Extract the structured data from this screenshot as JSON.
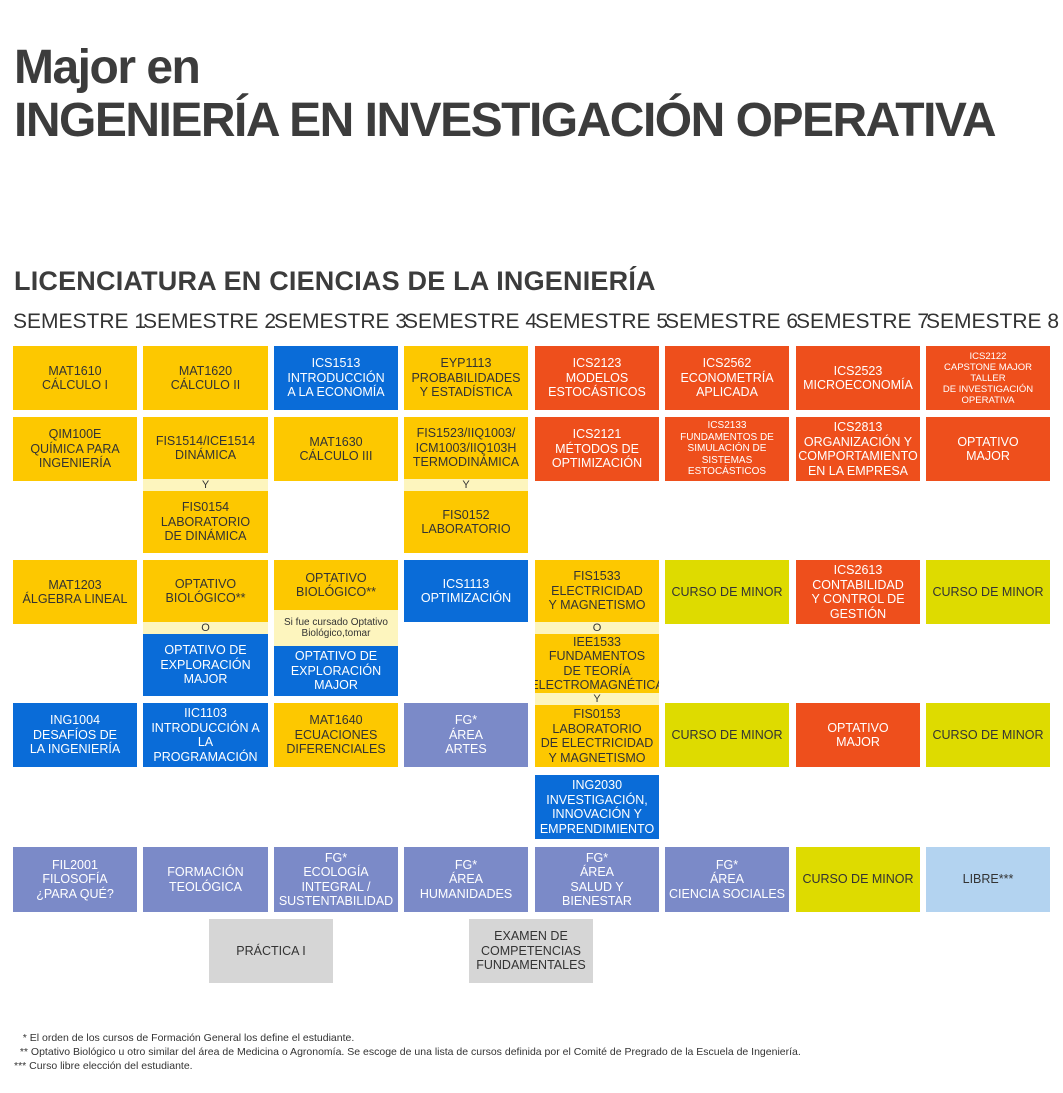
{
  "header": {
    "line1": "Major en",
    "line2": "INGENIERÍA EN INVESTIGACIÓN OPERATIVA",
    "subtitle": "LICENCIATURA EN CIENCIAS DE LA INGENIERÍA"
  },
  "semesters": [
    "SEMESTRE 1",
    "SEMESTRE 2",
    "SEMESTRE 3",
    "SEMESTRE 4",
    "SEMESTRE 5",
    "SEMESTRE 6",
    "SEMESTRE 7",
    "SEMESTRE 8"
  ],
  "colors": {
    "ciencias_basicas": "#fdc800",
    "ingenieria": "#0a6cd8",
    "major": "#ee4f1c",
    "minor": "#dedb00",
    "formacion_general": "#7b8ac8",
    "libre": "#b3d3f0",
    "requisitos": "#d6d6d6"
  },
  "courses": {
    "s1r1": "MAT1610\nCÁLCULO I",
    "s2r1": "MAT1620\nCÁLCULO II",
    "s3r1": "ICS1513\nINTRODUCCIÓN\nA LA ECONOMÍA",
    "s4r1": "EYP1113\nPROBABILIDADES\nY ESTADÍSTICA",
    "s5r1": "ICS2123\nMODELOS\nESTOCÁSTICOS",
    "s6r1": "ICS2562\nECONOMETRÍA\nAPLICADA",
    "s7r1": "ICS2523\nMICROECONOMÍA",
    "s8r1": "ICS2122\nCAPSTONE MAJOR TALLER\nDE INVESTIGACIÓN\nOPERATIVA",
    "s1r2": "QIM100E\nQUÍMICA PARA\nINGENIERÍA",
    "s2r2": "FIS1514/ICE1514\nDINÁMICA",
    "s2r2_conn": "Y",
    "s2r2b": "FIS0154\nLABORATORIO\nDE DINÁMICA",
    "s3r2": "MAT1630\nCÁLCULO III",
    "s4r2": "FIS1523/IIQ1003/\nICM1003/IIQ103H\nTERMODINÁMICA",
    "s4r2_conn": "Y",
    "s4r2b": "FIS0152\nLABORATORIO",
    "s5r2": "ICS2121\nMÉTODOS DE\nOPTIMIZACIÓN",
    "s6r2": "ICS2133\nFUNDAMENTOS DE\nSIMULACIÓN DE\nSISTEMAS ESTOCÁSTICOS",
    "s7r2": "ICS2813\nORGANIZACIÓN Y\nCOMPORTAMIENTO\nEN LA EMPRESA",
    "s8r2": "OPTATIVO\nMAJOR",
    "s1r3": "MAT1203\nÁLGEBRA LINEAL",
    "s2r3": "OPTATIVO\nBIOLÓGICO**",
    "s2r3_conn": "O",
    "s2r3b": "OPTATIVO DE\nEXPLORACIÓN\nMAJOR",
    "s3r3": "OPTATIVO\nBIOLÓGICO**",
    "s3r3_note": "Si fue cursado Optativo\nBiológico,tomar",
    "s3r3b": "OPTATIVO DE\nEXPLORACIÓN\nMAJOR",
    "s4r3": "ICS1113\nOPTIMIZACIÓN",
    "s5r3": "FIS1533\nELECTRICIDAD\nY MAGNETISMO",
    "s5r3_conn": "O",
    "s5r3b": "IEE1533\nFUNDAMENTOS\nDE TEORÍA\nELECTROMAGNÉTICA",
    "s5r3_conn2": "Y",
    "s6r3": "CURSO DE MINOR",
    "s7r3": "ICS2613\nCONTABILIDAD\nY CONTROL DE\nGESTIÓN",
    "s8r3": "CURSO DE MINOR",
    "s1r4": "ING1004\nDESAFÍOS DE\nLA INGENIERÍA",
    "s2r4": "IIC1103\nINTRODUCCIÓN A\nLA PROGRAMACIÓN",
    "s3r4": "MAT1640\nECUACIONES\nDIFERENCIALES",
    "s4r4": "FG*\nÁREA\nARTES",
    "s5r4": "FIS0153\nLABORATORIO\nDE ELECTRICIDAD\nY MAGNETISMO",
    "s6r4": "CURSO DE MINOR",
    "s7r4": "OPTATIVO\nMAJOR",
    "s8r4": "CURSO DE MINOR",
    "s5r4b": "ING2030\nINVESTIGACIÓN,\nINNOVACIÓN Y\nEMPRENDIMIENTO",
    "s1r5": "FIL2001\nFILOSOFÍA\n¿PARA QUÉ?",
    "s2r5": "FORMACIÓN\nTEOLÓGICA",
    "s3r5": "FG*\nECOLOGÍA INTEGRAL /\nSUSTENTABILIDAD",
    "s4r5": "FG*\nÁREA\nHUMANIDADES",
    "s5r5": "FG*\nÁREA\nSALUD Y BIENESTAR",
    "s6r5": "FG*\nÁREA\nCIENCIA SOCIALES",
    "s7r5": "CURSO DE MINOR",
    "s8r5": "LIBRE***",
    "practica": "PRÁCTICA I",
    "examen": "EXAMEN DE\nCOMPETENCIAS\nFUNDAMENTALES"
  },
  "footnotes": [
    "   * El orden de los cursos de Formación General los define el estudiante.",
    "  ** Optativo Biológico u otro similar del área de Medicina o Agronomía. Se escoge de una lista de cursos definida por el Comité de Pregrado de la Escuela de Ingeniería.",
    "*** Curso libre elección del estudiante."
  ]
}
